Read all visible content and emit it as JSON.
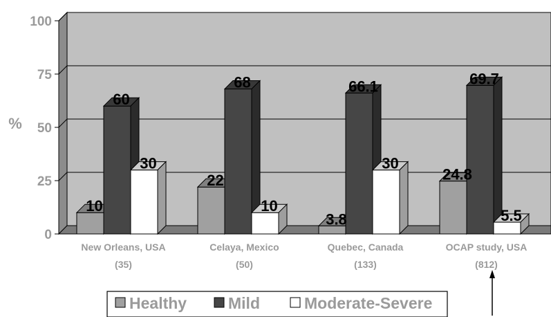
{
  "chart_data": {
    "type": "bar",
    "title": "",
    "xlabel": "",
    "ylabel": "%",
    "ylim": [
      0,
      100
    ],
    "yticks": [
      "0",
      "25",
      "50",
      "75",
      "100"
    ],
    "categories": [
      "New Orleans, USA",
      "Celaya, Mexico",
      "Quebec, Canada",
      "OCAP study, USA"
    ],
    "category_sublabels": [
      "(35)",
      "(50)",
      "(133)",
      "(812)"
    ],
    "series": [
      {
        "name": "Healthy",
        "values": [
          10,
          22,
          3.8,
          24.8
        ],
        "labels": [
          "10",
          "22",
          "3.8",
          "24.8"
        ]
      },
      {
        "name": "Mild",
        "values": [
          60,
          68,
          66.1,
          69.7
        ],
        "labels": [
          "60",
          "68",
          "66.1",
          "69.7"
        ]
      },
      {
        "name": "Moderate-Severe",
        "values": [
          30,
          10,
          30,
          5.5
        ],
        "labels": [
          "30",
          "10",
          "30",
          "5.5"
        ]
      }
    ],
    "grid": true,
    "legend_position": "bottom",
    "colors": {
      "Healthy": "#a0a0a0",
      "Mild": "#464646",
      "Moderate-Severe": "#ffffff",
      "plot_background": "#c0c0c0",
      "axis_text": "#9a9a9a"
    }
  }
}
